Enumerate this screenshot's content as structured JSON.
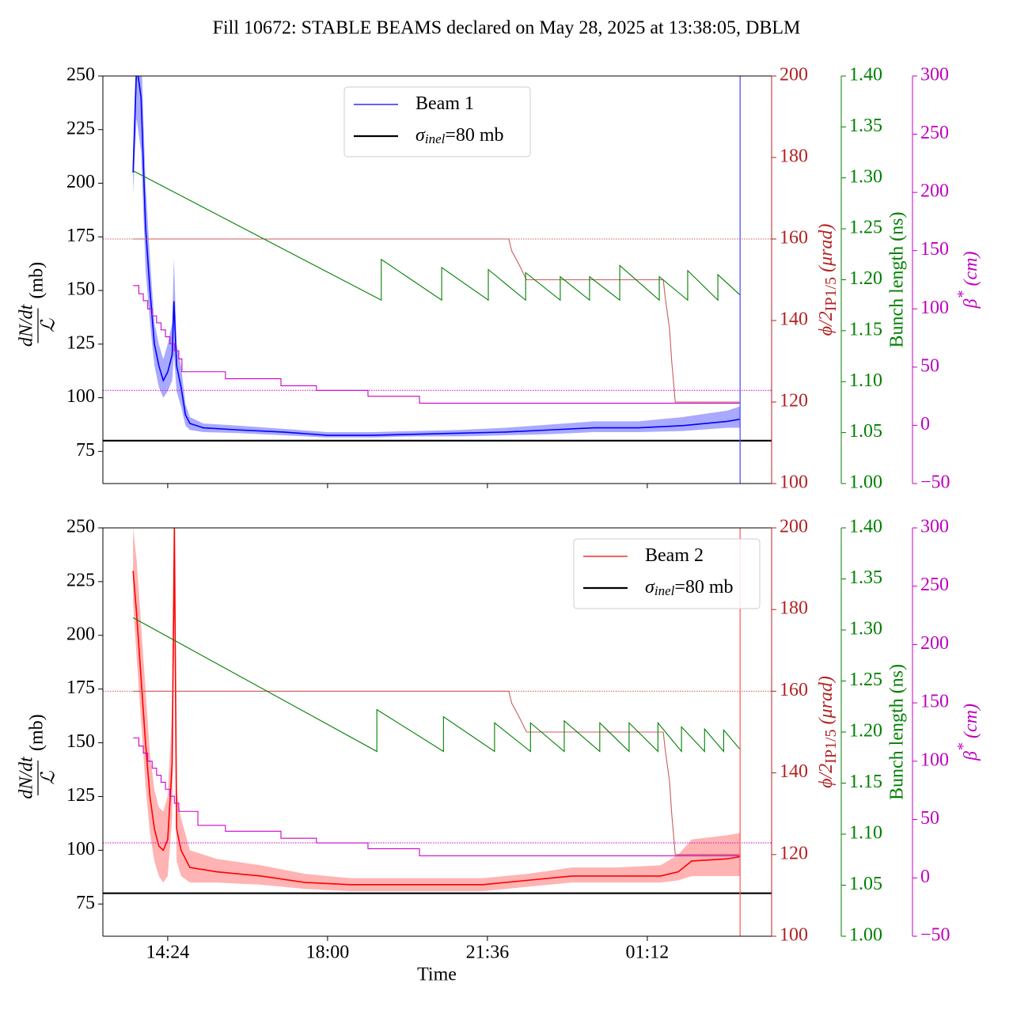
{
  "chart_data": [
    {
      "type": "line",
      "title": "Fill 10672: STABLE BEAMS declared on May 28, 2025 at 13:38:05, DBLM",
      "ylabel_numerator": "dN/dt",
      "ylabel_denominator": "ℒ",
      "ylabel_unit": "(mb)",
      "y2label_main": "ϕ/2",
      "y2label_sub": "IP1/5",
      "y2label_unit": " (μrad)",
      "y3label": "Bunch length (ns)",
      "y4label_main": "β",
      "y4label_sup": "*",
      "y4label_unit": " (cm)",
      "xlim": [
        12.94,
        28.0
      ],
      "xticks": [
        14.4,
        18,
        21.6,
        25.2
      ],
      "ylim": [
        60,
        250
      ],
      "yticks": [
        75,
        100,
        125,
        150,
        175,
        200,
        225,
        250
      ],
      "y2lim": [
        100,
        200
      ],
      "y2ticks": [
        100,
        120,
        140,
        160,
        180,
        200
      ],
      "y2color": "#b22222",
      "y3lim": [
        1.0,
        1.4
      ],
      "y3ticks": [
        {
          "value": 1,
          "label": "1.00"
        },
        1.05,
        {
          "value": 1.1,
          "label": "1.10"
        },
        1.15,
        {
          "value": 1.2,
          "label": "1.20"
        },
        1.25,
        {
          "value": 1.3,
          "label": "1.30"
        },
        1.35,
        {
          "value": 1.4,
          "label": "1.40"
        }
      ],
      "y3color": "#008000",
      "y4lim": [
        -50,
        300
      ],
      "y4ticks": [
        {
          "value": -50,
          "label": "−50"
        },
        0,
        50,
        100,
        150,
        200,
        250,
        300
      ],
      "y4color": "#bf00bf",
      "legend": "upper center",
      "vline": {
        "x": 27.29,
        "color": "#5050ff"
      },
      "series": [
        {
          "name": "Beam 1",
          "color": "#0000ff",
          "axis": "y",
          "band_color": "#6f6fff",
          "x": [
            13.62,
            13.7,
            13.8,
            13.9,
            14.0,
            14.1,
            14.2,
            14.3,
            14.4,
            14.5,
            14.54,
            14.6,
            14.7,
            14.8,
            14.9,
            15.2,
            16,
            17,
            18,
            19,
            20,
            21,
            22,
            23,
            24,
            25,
            26,
            27,
            27.29
          ],
          "values": [
            205,
            255,
            240,
            180,
            150,
            125,
            115,
            108,
            112,
            120,
            145,
            115,
            105,
            92,
            88,
            86,
            85,
            84,
            82.5,
            82.5,
            83,
            83.5,
            84,
            85,
            86,
            86,
            87,
            89,
            90
          ],
          "band_low": [
            195,
            230,
            215,
            160,
            135,
            115,
            105,
            100,
            103,
            108,
            120,
            103,
            96,
            87,
            85,
            84,
            83.5,
            82.5,
            81.5,
            81.5,
            82,
            82,
            82.5,
            83,
            84,
            84,
            84.5,
            86,
            86
          ],
          "band_high": [
            215,
            270,
            265,
            200,
            165,
            135,
            125,
            118,
            125,
            135,
            165,
            125,
            115,
            97,
            91,
            88,
            87,
            85.5,
            84,
            84,
            84.5,
            85,
            86,
            87.5,
            89,
            89,
            91,
            94,
            96
          ]
        },
        {
          "name": "=80 mb",
          "name_symbol": "σ",
          "name_subscript": "inel",
          "color": "#000000",
          "axis": "y",
          "values": [
            80
          ]
        },
        {
          "color": "#cd5c5c",
          "axis": "y2",
          "reference": 160,
          "x": [
            13.62,
            22.08,
            22.15,
            22.3,
            22.48,
            25.56,
            25.6,
            25.7,
            25.75,
            25.83,
            27.29
          ],
          "values": [
            160,
            160,
            157,
            154,
            150,
            150,
            146,
            138,
            130,
            120,
            120
          ]
        },
        {
          "color": "#008000",
          "axis": "y3",
          "x": [
            13.62,
            19.21,
            19.21,
            20.57,
            20.57,
            21.62,
            21.62,
            22.46,
            22.46,
            23.24,
            23.24,
            23.9,
            23.9,
            24.58,
            24.58,
            25.47,
            25.47,
            26.11,
            26.11,
            26.79,
            26.79,
            27.29
          ],
          "values": [
            1.307,
            1.18,
            1.22,
            1.18,
            1.212,
            1.18,
            1.21,
            1.18,
            1.207,
            1.18,
            1.203,
            1.18,
            1.203,
            1.18,
            1.214,
            1.18,
            1.203,
            1.18,
            1.209,
            1.18,
            1.205,
            1.185
          ]
        },
        {
          "color": "#cc00cc",
          "axis": "y4",
          "drawstyle": "steps-post",
          "reference": 30,
          "x": [
            13.62,
            13.75,
            13.85,
            13.95,
            14.05,
            14.15,
            14.25,
            14.35,
            14.45,
            14.55,
            14.65,
            14.72,
            15.7,
            16.95,
            17.75,
            18.91,
            20.07,
            27.29
          ],
          "values": [
            120,
            113,
            107,
            100,
            94,
            88,
            82,
            76,
            70,
            64,
            57,
            46,
            40,
            34,
            30,
            25,
            19,
            19
          ]
        }
      ]
    },
    {
      "type": "line",
      "xlabel": "Time",
      "ylabel_numerator": "dN/dt",
      "ylabel_denominator": "ℒ",
      "ylabel_unit": "(mb)",
      "y2label_main": "ϕ/2",
      "y2label_sub": "IP1/5",
      "y2label_unit": " (μrad)",
      "y3label": "Bunch length (ns)",
      "y4label_main": "β",
      "y4label_sup": "*",
      "y4label_unit": " (cm)",
      "xlim": [
        12.94,
        28.0
      ],
      "xticks": [
        {
          "value": 14.4,
          "label": "14:24"
        },
        {
          "value": 18,
          "label": "18:00"
        },
        {
          "value": 21.6,
          "label": "21:36"
        },
        {
          "value": 25.2,
          "label": "01:12"
        }
      ],
      "ylim": [
        60,
        250
      ],
      "yticks": [
        75,
        100,
        125,
        150,
        175,
        200,
        225,
        250
      ],
      "y2lim": [
        100,
        200
      ],
      "y2ticks": [
        100,
        120,
        140,
        160,
        180,
        200
      ],
      "y2color": "#b22222",
      "y3lim": [
        1.0,
        1.4
      ],
      "y3ticks": [
        {
          "value": 1,
          "label": "1.00"
        },
        1.05,
        {
          "value": 1.1,
          "label": "1.10"
        },
        1.15,
        {
          "value": 1.2,
          "label": "1.20"
        },
        1.25,
        {
          "value": 1.3,
          "label": "1.30"
        },
        1.35,
        {
          "value": 1.4,
          "label": "1.40"
        }
      ],
      "y3color": "#008000",
      "y4lim": [
        -50,
        300
      ],
      "y4ticks": [
        {
          "value": -50,
          "label": "−50"
        },
        0,
        50,
        100,
        150,
        200,
        250,
        300
      ],
      "y4color": "#bf00bf",
      "legend": "upper right",
      "vline": {
        "x": 27.29,
        "color": "#ff6060"
      },
      "series": [
        {
          "name": "Beam 2",
          "color": "#ff0000",
          "axis": "y",
          "band_color": "#ff8080",
          "x": [
            13.62,
            13.7,
            13.8,
            13.9,
            14.0,
            14.1,
            14.2,
            14.3,
            14.4,
            14.5,
            14.55,
            14.6,
            14.7,
            14.9,
            15.5,
            16.5,
            17.5,
            18.5,
            19.5,
            20.5,
            21.5,
            22.5,
            23.5,
            24.5,
            25.5,
            25.9,
            26.2,
            27.0,
            27.29
          ],
          "values": [
            230,
            210,
            180,
            150,
            125,
            110,
            102,
            100,
            105,
            140,
            250,
            110,
            100,
            92,
            90,
            88,
            85,
            84,
            84,
            84,
            84,
            86,
            88,
            88,
            88,
            90,
            95,
            96,
            97
          ],
          "band_low": [
            215,
            190,
            160,
            130,
            108,
            95,
            88,
            85,
            88,
            115,
            210,
            95,
            88,
            85,
            85,
            84,
            82,
            81,
            81,
            81,
            81,
            83,
            85,
            85,
            85,
            86,
            88,
            88,
            88
          ],
          "band_high": [
            250,
            235,
            205,
            175,
            145,
            128,
            120,
            118,
            125,
            165,
            260,
            128,
            115,
            100,
            96,
            93,
            89,
            87,
            87,
            87,
            87,
            89,
            92,
            92,
            93,
            98,
            105,
            107,
            108
          ]
        },
        {
          "name": "=80 mb",
          "name_symbol": "σ",
          "name_subscript": "inel",
          "color": "#000000",
          "axis": "y",
          "values": [
            80
          ]
        },
        {
          "color": "#cd5c5c",
          "axis": "y2",
          "reference": 160,
          "x": [
            13.62,
            22.08,
            22.15,
            22.3,
            22.48,
            25.56,
            25.6,
            25.7,
            25.75,
            25.83,
            27.29
          ],
          "values": [
            160,
            160,
            157,
            154,
            150,
            150,
            146,
            138,
            130,
            120,
            120
          ]
        },
        {
          "color": "#008000",
          "axis": "y3",
          "x": [
            13.62,
            19.11,
            19.11,
            20.61,
            20.61,
            21.76,
            21.76,
            22.57,
            22.57,
            23.33,
            23.33,
            24.13,
            24.13,
            24.79,
            24.79,
            25.44,
            25.44,
            25.97,
            25.97,
            26.49,
            26.49,
            26.92,
            26.92,
            27.29
          ],
          "values": [
            1.312,
            1.181,
            1.222,
            1.181,
            1.215,
            1.181,
            1.209,
            1.181,
            1.209,
            1.181,
            1.211,
            1.181,
            1.209,
            1.181,
            1.209,
            1.181,
            1.209,
            1.181,
            1.205,
            1.181,
            1.203,
            1.181,
            1.202,
            1.183
          ]
        },
        {
          "color": "#cc00cc",
          "axis": "y4",
          "drawstyle": "steps-post",
          "reference": 30,
          "x": [
            13.62,
            13.75,
            13.85,
            13.95,
            14.05,
            14.15,
            14.25,
            14.35,
            14.45,
            14.55,
            14.65,
            15.08,
            15.7,
            16.95,
            17.75,
            18.91,
            20.07,
            27.29
          ],
          "values": [
            120,
            113,
            107,
            100,
            94,
            88,
            82,
            76,
            70,
            64,
            57,
            45,
            40,
            34,
            30,
            25,
            19,
            19
          ]
        }
      ]
    }
  ]
}
